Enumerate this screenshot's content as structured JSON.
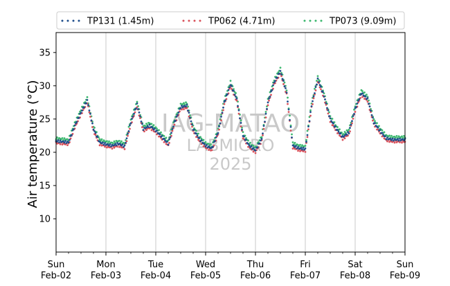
{
  "chart_data": {
    "type": "scatter",
    "title": "",
    "xlabel": "",
    "ylabel": "Air temperature (°C)",
    "xlim": [
      "2025-02-02 00:00",
      "2025-02-09 00:00"
    ],
    "ylim": [
      5,
      38
    ],
    "yticks": [
      10,
      15,
      20,
      25,
      30,
      35
    ],
    "grid": "vertical lines at daily ticks",
    "legend_position": "top (above plot), 3 columns",
    "x_ticks": [
      {
        "day": "Sun",
        "date": "Feb-02"
      },
      {
        "day": "Mon",
        "date": "Feb-03"
      },
      {
        "day": "Tue",
        "date": "Feb-04"
      },
      {
        "day": "Wed",
        "date": "Feb-05"
      },
      {
        "day": "Thu",
        "date": "Feb-06"
      },
      {
        "day": "Fri",
        "date": "Feb-07"
      },
      {
        "day": "Sat",
        "date": "Feb-08"
      },
      {
        "day": "Sun",
        "date": "Feb-09"
      }
    ],
    "watermark": [
      "IAG-MATAO",
      "LABMICRO",
      "2025"
    ],
    "series": [
      {
        "name": "TP131 (1.45m)",
        "color": "#1f4e8c"
      },
      {
        "name": "TP062 (4.71m)",
        "color": "#d9515b"
      },
      {
        "name": "TP073 (9.09m)",
        "color": "#3cb86f"
      }
    ],
    "profile_hours_from_start": [
      0,
      3,
      6,
      9,
      12,
      15,
      18,
      21,
      24,
      27,
      30,
      33,
      36,
      39,
      42,
      45,
      48,
      51,
      54,
      57,
      60,
      63,
      66,
      69,
      72,
      75,
      78,
      81,
      84,
      87,
      90,
      93,
      96,
      99,
      102,
      105,
      108,
      111,
      114,
      117,
      120,
      123,
      126,
      129,
      132,
      135,
      138,
      141,
      144,
      147,
      150,
      153,
      156,
      159,
      162,
      165,
      168
    ],
    "profile_temperature_c": [
      21.7,
      21.6,
      21.5,
      24.0,
      26.0,
      27.8,
      23.5,
      21.5,
      21.2,
      21.0,
      21.3,
      20.9,
      24.5,
      27.2,
      23.5,
      24.0,
      23.3,
      22.3,
      21.3,
      24.5,
      26.8,
      27.0,
      23.5,
      22.0,
      21.0,
      20.6,
      23.0,
      27.5,
      30.2,
      28.0,
      22.5,
      21.0,
      20.3,
      22.0,
      27.5,
      30.5,
      32.2,
      29.0,
      21.0,
      20.6,
      20.5,
      27.0,
      31.0,
      28.5,
      25.0,
      23.5,
      22.3,
      23.0,
      26.5,
      28.9,
      28.0,
      24.5,
      23.2,
      22.1,
      21.9,
      21.9,
      21.9
    ],
    "series_offsets_c": [
      0.0,
      -0.3,
      0.4
    ]
  }
}
